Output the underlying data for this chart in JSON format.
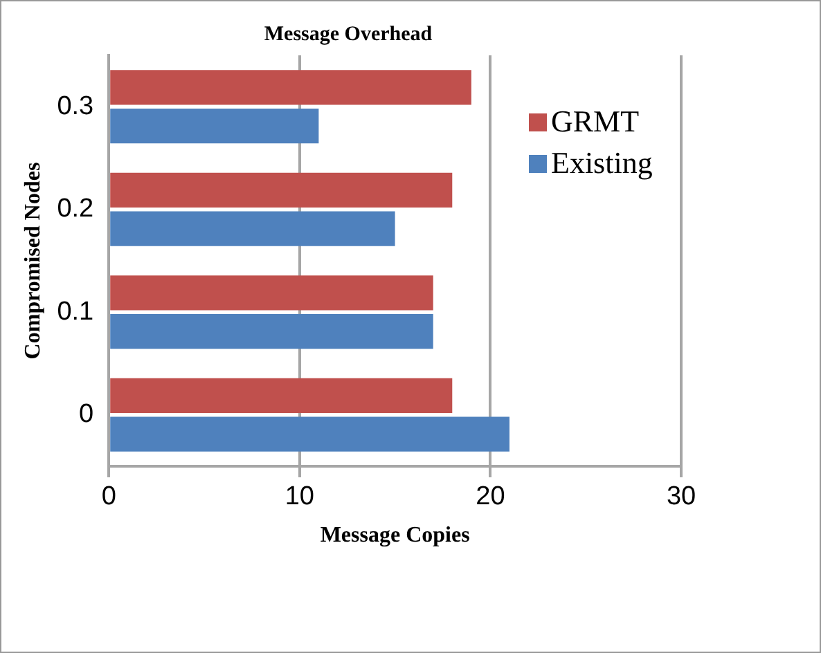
{
  "chart_data": {
    "type": "bar",
    "orientation": "horizontal",
    "title": "Message Overhead",
    "xlabel": "Message Copies",
    "ylabel": "Compromised Nodes",
    "categories": [
      "0.3",
      "0.2",
      "0.1",
      "0"
    ],
    "series": [
      {
        "name": "GRMT",
        "color": "#c0504d",
        "values": [
          19,
          18,
          17,
          18
        ]
      },
      {
        "name": "Existing",
        "color": "#4f81bd",
        "values": [
          11,
          15,
          17,
          21
        ]
      }
    ],
    "xlim": [
      0,
      30
    ],
    "xticks": [
      0,
      10,
      20,
      30
    ],
    "grid": "x",
    "legend": "top right"
  }
}
